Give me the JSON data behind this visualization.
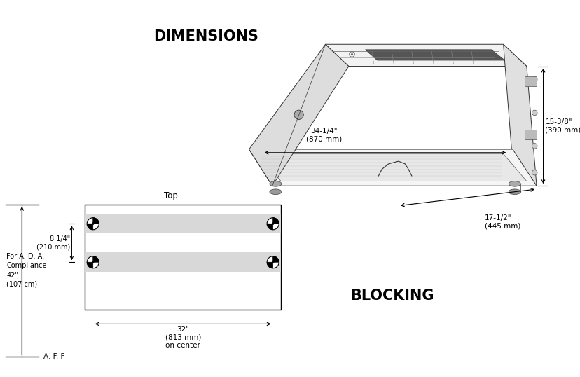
{
  "title_dimensions": "DIMENSIONS",
  "title_blocking": "BLOCKING",
  "bg_color": "#ffffff",
  "line_color": "#000000",
  "gray_fill": "#d4d4d4",
  "dim_34_14": "34-1/4\"\n(870 mm)",
  "dim_15_38": "15-3/8\"\n(390 mm)",
  "dim_17_12": "17-1/2\"\n(445 mm)",
  "dim_8_14": "8 1/4\"\n(210 mm)",
  "dim_32": "32\"\n(813 mm)\non center",
  "dim_42": "For A. D. A.\nCompliance\n42\"\n(107 cm)",
  "dim_aff": "A. F. F",
  "top_label": "Top"
}
